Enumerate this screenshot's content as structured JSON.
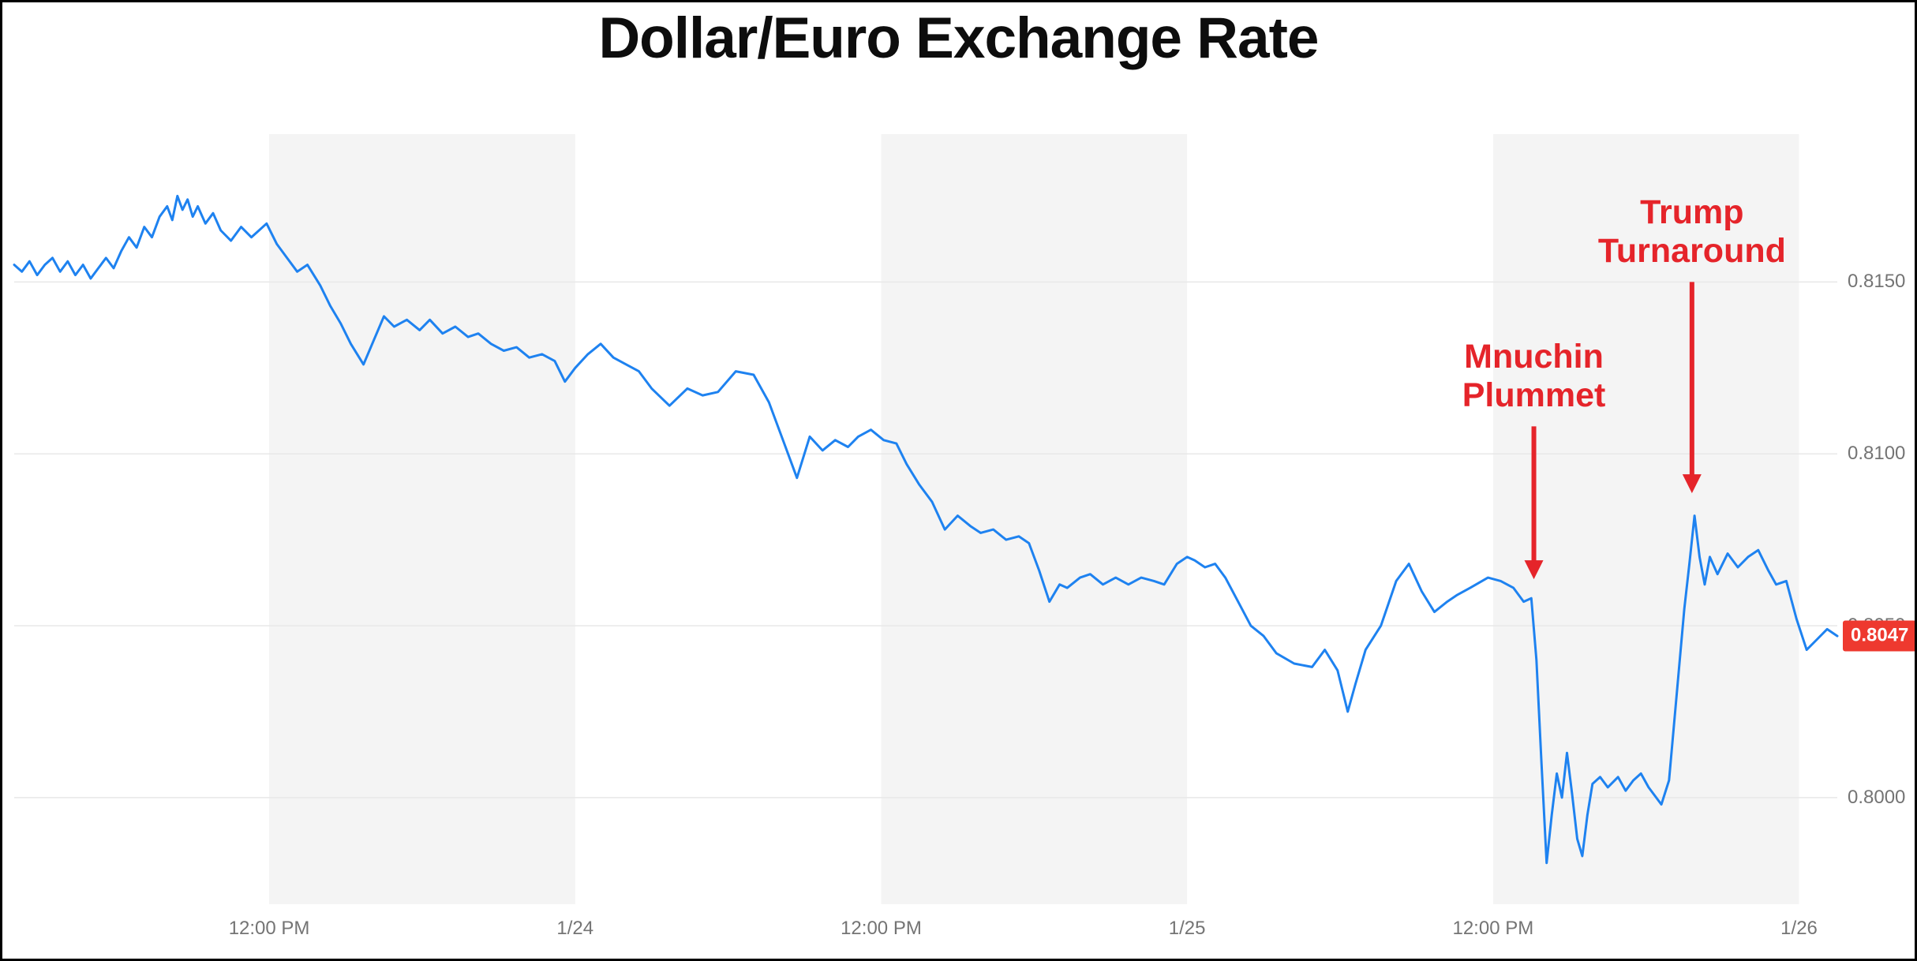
{
  "title": "Dollar/Euro Exchange Rate",
  "colors": {
    "line": "#1e82f0",
    "annotation": "#e5242a",
    "badge_bg": "#ee392f",
    "badge_text": "#ffffff",
    "band": "#f4f4f4",
    "grid": "#e8e8e8",
    "tick_text": "#747474",
    "background": "#ffffff",
    "border": "#000000"
  },
  "badge": {
    "label": "0.8047",
    "value": 0.8047
  },
  "annotations": [
    {
      "name": "mnuchin-plummet",
      "lines": [
        "Mnuchin",
        "Plummet"
      ],
      "x": 59.6,
      "arrow_from_value": 0.8108,
      "arrow_to_value": 0.8064
    },
    {
      "name": "trump-turnaround",
      "lines": [
        "Trump",
        "Turnaround"
      ],
      "x": 65.8,
      "arrow_from_value": 0.815,
      "arrow_to_value": 0.8089
    }
  ],
  "chart_data": {
    "type": "line",
    "title": "Dollar/Euro Exchange Rate",
    "xlabel": "",
    "ylabel": "",
    "x_unit": "hours_from_chart_start",
    "xlim": [
      0,
      71.5
    ],
    "ylim": [
      0.7969,
      0.8193
    ],
    "grid": true,
    "x_ticks": [
      {
        "x": 10,
        "label": "12:00 PM"
      },
      {
        "x": 22,
        "label": "1/24"
      },
      {
        "x": 34,
        "label": "12:00 PM"
      },
      {
        "x": 46,
        "label": "1/25"
      },
      {
        "x": 58,
        "label": "12:00 PM"
      },
      {
        "x": 70,
        "label": "1/26"
      }
    ],
    "y_ticks": [
      {
        "value": 0.815,
        "label": "0.8150"
      },
      {
        "value": 0.81,
        "label": "0.8100"
      },
      {
        "value": 0.805,
        "label": "0.8050"
      },
      {
        "value": 0.8,
        "label": "0.8000"
      }
    ],
    "shaded_bands": [
      [
        10,
        22
      ],
      [
        34,
        46
      ],
      [
        58,
        70
      ]
    ],
    "last_value": 0.8047,
    "series": [
      {
        "name": "Dollar/Euro",
        "points": [
          [
            0,
            0.8155
          ],
          [
            0.3,
            0.8153
          ],
          [
            0.6,
            0.8156
          ],
          [
            0.9,
            0.8152
          ],
          [
            1.2,
            0.8155
          ],
          [
            1.5,
            0.8157
          ],
          [
            1.8,
            0.8153
          ],
          [
            2.1,
            0.8156
          ],
          [
            2.4,
            0.8152
          ],
          [
            2.7,
            0.8155
          ],
          [
            3.0,
            0.8151
          ],
          [
            3.3,
            0.8154
          ],
          [
            3.6,
            0.8157
          ],
          [
            3.9,
            0.8154
          ],
          [
            4.2,
            0.8159
          ],
          [
            4.5,
            0.8163
          ],
          [
            4.8,
            0.816
          ],
          [
            5.1,
            0.8166
          ],
          [
            5.4,
            0.8163
          ],
          [
            5.7,
            0.8169
          ],
          [
            6.0,
            0.8172
          ],
          [
            6.2,
            0.8168
          ],
          [
            6.4,
            0.8175
          ],
          [
            6.6,
            0.8171
          ],
          [
            6.8,
            0.8174
          ],
          [
            7.0,
            0.8169
          ],
          [
            7.2,
            0.8172
          ],
          [
            7.5,
            0.8167
          ],
          [
            7.8,
            0.817
          ],
          [
            8.1,
            0.8165
          ],
          [
            8.5,
            0.8162
          ],
          [
            8.9,
            0.8166
          ],
          [
            9.3,
            0.8163
          ],
          [
            9.6,
            0.8165
          ],
          [
            9.9,
            0.8167
          ],
          [
            10.3,
            0.8161
          ],
          [
            10.7,
            0.8157
          ],
          [
            11.1,
            0.8153
          ],
          [
            11.5,
            0.8155
          ],
          [
            12.0,
            0.8149
          ],
          [
            12.4,
            0.8143
          ],
          [
            12.8,
            0.8138
          ],
          [
            13.2,
            0.8132
          ],
          [
            13.7,
            0.8126
          ],
          [
            14.1,
            0.8133
          ],
          [
            14.5,
            0.814
          ],
          [
            14.9,
            0.8137
          ],
          [
            15.4,
            0.8139
          ],
          [
            15.9,
            0.8136
          ],
          [
            16.3,
            0.8139
          ],
          [
            16.8,
            0.8135
          ],
          [
            17.3,
            0.8137
          ],
          [
            17.8,
            0.8134
          ],
          [
            18.2,
            0.8135
          ],
          [
            18.7,
            0.8132
          ],
          [
            19.2,
            0.813
          ],
          [
            19.7,
            0.8131
          ],
          [
            20.2,
            0.8128
          ],
          [
            20.7,
            0.8129
          ],
          [
            21.2,
            0.8127
          ],
          [
            21.6,
            0.8121
          ],
          [
            22.0,
            0.8125
          ],
          [
            22.5,
            0.8129
          ],
          [
            23.0,
            0.8132
          ],
          [
            23.5,
            0.8128
          ],
          [
            24.0,
            0.8126
          ],
          [
            24.5,
            0.8124
          ],
          [
            25.0,
            0.8119
          ],
          [
            25.7,
            0.8114
          ],
          [
            26.4,
            0.8119
          ],
          [
            27.0,
            0.8117
          ],
          [
            27.6,
            0.8118
          ],
          [
            28.3,
            0.8124
          ],
          [
            29.0,
            0.8123
          ],
          [
            29.6,
            0.8115
          ],
          [
            30.2,
            0.8103
          ],
          [
            30.7,
            0.8093
          ],
          [
            31.2,
            0.8105
          ],
          [
            31.7,
            0.8101
          ],
          [
            32.2,
            0.8104
          ],
          [
            32.7,
            0.8102
          ],
          [
            33.1,
            0.8105
          ],
          [
            33.6,
            0.8107
          ],
          [
            34.1,
            0.8104
          ],
          [
            34.6,
            0.8103
          ],
          [
            35.0,
            0.8097
          ],
          [
            35.5,
            0.8091
          ],
          [
            36.0,
            0.8086
          ],
          [
            36.5,
            0.8078
          ],
          [
            37.0,
            0.8082
          ],
          [
            37.5,
            0.8079
          ],
          [
            37.9,
            0.8077
          ],
          [
            38.4,
            0.8078
          ],
          [
            38.9,
            0.8075
          ],
          [
            39.4,
            0.8076
          ],
          [
            39.8,
            0.8074
          ],
          [
            40.2,
            0.8066
          ],
          [
            40.6,
            0.8057
          ],
          [
            41.0,
            0.8062
          ],
          [
            41.3,
            0.8061
          ],
          [
            41.8,
            0.8064
          ],
          [
            42.2,
            0.8065
          ],
          [
            42.7,
            0.8062
          ],
          [
            43.2,
            0.8064
          ],
          [
            43.7,
            0.8062
          ],
          [
            44.2,
            0.8064
          ],
          [
            44.7,
            0.8063
          ],
          [
            45.1,
            0.8062
          ],
          [
            45.6,
            0.8068
          ],
          [
            46.0,
            0.807
          ],
          [
            46.3,
            0.8069
          ],
          [
            46.7,
            0.8067
          ],
          [
            47.1,
            0.8068
          ],
          [
            47.5,
            0.8064
          ],
          [
            48.0,
            0.8057
          ],
          [
            48.5,
            0.805
          ],
          [
            49.0,
            0.8047
          ],
          [
            49.5,
            0.8042
          ],
          [
            50.2,
            0.8039
          ],
          [
            50.9,
            0.8038
          ],
          [
            51.4,
            0.8043
          ],
          [
            51.9,
            0.8037
          ],
          [
            52.3,
            0.8025
          ],
          [
            52.6,
            0.8033
          ],
          [
            53.0,
            0.8043
          ],
          [
            53.6,
            0.805
          ],
          [
            54.2,
            0.8063
          ],
          [
            54.7,
            0.8068
          ],
          [
            55.2,
            0.806
          ],
          [
            55.7,
            0.8054
          ],
          [
            56.2,
            0.8057
          ],
          [
            56.6,
            0.8059
          ],
          [
            57.1,
            0.8061
          ],
          [
            57.8,
            0.8064
          ],
          [
            58.3,
            0.8063
          ],
          [
            58.8,
            0.8061
          ],
          [
            59.2,
            0.8057
          ],
          [
            59.5,
            0.8058
          ],
          [
            59.7,
            0.804
          ],
          [
            59.9,
            0.801
          ],
          [
            60.1,
            0.7981
          ],
          [
            60.3,
            0.7995
          ],
          [
            60.5,
            0.8007
          ],
          [
            60.7,
            0.8
          ],
          [
            60.9,
            0.8013
          ],
          [
            61.1,
            0.8001
          ],
          [
            61.3,
            0.7988
          ],
          [
            61.5,
            0.7983
          ],
          [
            61.7,
            0.7995
          ],
          [
            61.9,
            0.8004
          ],
          [
            62.2,
            0.8006
          ],
          [
            62.5,
            0.8003
          ],
          [
            62.9,
            0.8006
          ],
          [
            63.2,
            0.8002
          ],
          [
            63.5,
            0.8005
          ],
          [
            63.8,
            0.8007
          ],
          [
            64.1,
            0.8003
          ],
          [
            64.4,
            0.8
          ],
          [
            64.6,
            0.7998
          ],
          [
            64.9,
            0.8005
          ],
          [
            65.2,
            0.803
          ],
          [
            65.5,
            0.8055
          ],
          [
            65.7,
            0.8068
          ],
          [
            65.9,
            0.8082
          ],
          [
            66.1,
            0.807
          ],
          [
            66.3,
            0.8062
          ],
          [
            66.5,
            0.807
          ],
          [
            66.8,
            0.8065
          ],
          [
            67.2,
            0.8071
          ],
          [
            67.6,
            0.8067
          ],
          [
            68.0,
            0.807
          ],
          [
            68.4,
            0.8072
          ],
          [
            68.8,
            0.8066
          ],
          [
            69.1,
            0.8062
          ],
          [
            69.5,
            0.8063
          ],
          [
            69.9,
            0.8052
          ],
          [
            70.3,
            0.8043
          ],
          [
            70.7,
            0.8046
          ],
          [
            71.1,
            0.8049
          ],
          [
            71.5,
            0.8047
          ]
        ]
      }
    ]
  }
}
